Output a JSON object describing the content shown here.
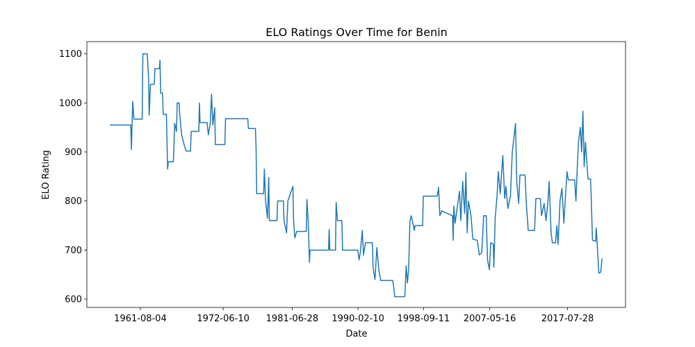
{
  "chart_data": {
    "type": "line",
    "title": "ELO Ratings Over Time for Benin",
    "xlabel": "Date",
    "ylabel": "ELO Rating",
    "color": "#1f77b4",
    "xlim": [
      "1954-08-01",
      "2025-03-01"
    ],
    "xticks": [
      "1961-08-04",
      "1972-06-10",
      "1981-06-28",
      "1990-02-10",
      "1998-09-11",
      "2007-05-16",
      "2017-07-28"
    ],
    "ylim": [
      583,
      1125
    ],
    "yticks": [
      600,
      700,
      800,
      900,
      1000,
      1100
    ],
    "x": [
      "1957-08-01",
      "1960-05-01",
      "1960-06-01",
      "1960-08-01",
      "1960-10-01",
      "1961-11-01",
      "1961-12-01",
      "1962-07-01",
      "1962-09-01",
      "1962-10-01",
      "1962-12-01",
      "1963-06-01",
      "1963-07-01",
      "1964-02-01",
      "1964-03-01",
      "1964-04-01",
      "1964-07-01",
      "1964-08-01",
      "1965-01-01",
      "1965-03-01",
      "1965-04-01",
      "1965-12-01",
      "1966-02-01",
      "1966-05-01",
      "1966-06-01",
      "1966-09-01",
      "1966-10-01",
      "1967-01-01",
      "1967-05-01",
      "1967-08-01",
      "1968-03-01",
      "1968-04-01",
      "1969-04-01",
      "1969-05-01",
      "1969-06-01",
      "1970-05-01",
      "1970-07-01",
      "1970-10-01",
      "1970-12-01",
      "1971-02-01",
      "1971-05-01",
      "1971-06-01",
      "1972-09-01",
      "1972-10-01",
      "1975-09-01",
      "1975-10-01",
      "1976-09-01",
      "1976-10-01",
      "1976-11-01",
      "1977-10-01",
      "1977-11-01",
      "1978-01-01",
      "1978-04-01",
      "1978-06-01",
      "1978-07-01",
      "1979-07-01",
      "1979-08-01",
      "1980-05-01",
      "1980-06-01",
      "1980-10-01",
      "1980-12-01",
      "1981-08-01",
      "1981-09-01",
      "1981-11-01",
      "1982-02-01",
      "1983-05-01",
      "1983-06-01",
      "1983-08-01",
      "1983-10-01",
      "1983-11-01",
      "1986-04-01",
      "1986-05-01",
      "1986-06-01",
      "1987-03-01",
      "1987-04-01",
      "1987-06-01",
      "1988-01-01",
      "1988-02-01",
      "1990-02-01",
      "1990-04-01",
      "1990-06-01",
      "1990-09-01",
      "1990-11-01",
      "1991-02-01",
      "1992-01-01",
      "1992-02-01",
      "1992-05-01",
      "1992-08-01",
      "1992-11-01",
      "1993-02-01",
      "1994-09-01",
      "1994-11-01",
      "1994-12-01",
      "1996-04-01",
      "1996-06-01",
      "1996-08-01",
      "1996-10-01",
      "1996-12-01",
      "1997-02-01",
      "1997-07-01",
      "1997-08-01",
      "1998-08-01",
      "1998-09-01",
      "2000-07-01",
      "2000-09-01",
      "2000-11-01",
      "2001-02-01",
      "2001-10-01",
      "2002-07-01",
      "2002-08-01",
      "2002-09-01",
      "2002-11-01",
      "2003-06-01",
      "2003-08-01",
      "2003-11-01",
      "2004-02-01",
      "2004-04-01",
      "2004-06-01",
      "2004-08-01",
      "2004-12-01",
      "2005-03-01",
      "2005-10-01",
      "2006-01-01",
      "2006-05-01",
      "2006-08-01",
      "2006-12-01",
      "2007-02-01",
      "2007-05-01",
      "2007-07-01",
      "2007-11-01",
      "2007-12-01",
      "2008-02-01",
      "2008-05-01",
      "2008-07-01",
      "2008-10-01",
      "2009-02-01",
      "2009-05-01",
      "2009-07-01",
      "2009-10-01",
      "2010-02-01",
      "2010-05-01",
      "2010-10-01",
      "2010-12-01",
      "2011-03-01",
      "2011-05-01",
      "2012-01-01",
      "2012-03-01",
      "2012-06-01",
      "2013-04-01",
      "2013-06-01",
      "2014-01-01",
      "2014-03-01",
      "2014-07-01",
      "2014-10-01",
      "2015-01-01",
      "2015-03-01",
      "2015-06-01",
      "2015-08-01",
      "2016-01-01",
      "2016-03-01",
      "2016-05-01",
      "2016-08-01",
      "2016-11-01",
      "2017-02-01",
      "2017-07-01",
      "2017-09-01",
      "2018-07-01",
      "2018-09-01",
      "2018-11-01",
      "2019-01-01",
      "2019-04-01",
      "2019-06-01",
      "2019-08-01",
      "2019-10-01",
      "2019-12-01",
      "2020-04-01",
      "2020-08-01",
      "2020-09-01",
      "2020-11-01",
      "2021-04-01",
      "2021-05-01",
      "2021-07-01",
      "2021-09-01",
      "2021-12-01",
      "2022-02-01"
    ],
    "values": [
      955,
      955,
      905,
      1003,
      967,
      967,
      1100,
      1100,
      1050,
      975,
      1038,
      1038,
      1070,
      1070,
      1087,
      1020,
      1020,
      977,
      977,
      865,
      880,
      880,
      958,
      942,
      1000,
      1000,
      977,
      935,
      915,
      902,
      902,
      942,
      942,
      1000,
      960,
      960,
      935,
      958,
      1018,
      955,
      990,
      915,
      915,
      968,
      968,
      948,
      948,
      910,
      815,
      815,
      865,
      800,
      765,
      848,
      760,
      760,
      800,
      800,
      760,
      735,
      800,
      830,
      760,
      725,
      738,
      738,
      803,
      760,
      675,
      700,
      700,
      742,
      700,
      700,
      797,
      760,
      760,
      700,
      700,
      680,
      695,
      740,
      690,
      715,
      715,
      665,
      640,
      705,
      660,
      638,
      638,
      620,
      605,
      605,
      668,
      633,
      662,
      760,
      770,
      740,
      750,
      750,
      810,
      810,
      828,
      770,
      780,
      775,
      770,
      720,
      790,
      755,
      820,
      760,
      840,
      775,
      858,
      735,
      800,
      770,
      722,
      720,
      690,
      695,
      770,
      770,
      680,
      660,
      715,
      712,
      665,
      765,
      810,
      860,
      815,
      893,
      805,
      830,
      785,
      810,
      900,
      958,
      840,
      795,
      853,
      853,
      795,
      740,
      740,
      805,
      805,
      770,
      795,
      760,
      800,
      840,
      735,
      715,
      715,
      750,
      712,
      800,
      826,
      755,
      860,
      843,
      843,
      800,
      865,
      920,
      950,
      900,
      983,
      870,
      920,
      845,
      845,
      810,
      720,
      718,
      745,
      700,
      653,
      655,
      683
    ]
  }
}
